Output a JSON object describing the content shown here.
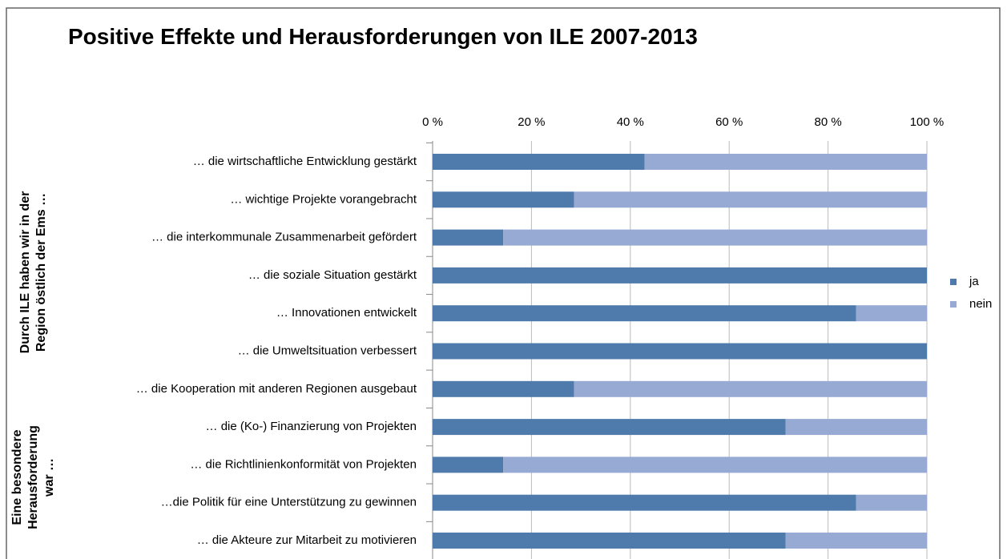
{
  "chart_data": {
    "type": "stacked-bar-horizontal",
    "title": "Positive Effekte und Herausforderungen von ILE 2007-2013",
    "categories": [
      "… die wirtschaftliche Entwicklung gestärkt",
      "… wichtige Projekte vorangebracht",
      "… die interkommunale Zusammenarbeit gefördert",
      "… die soziale Situation gestärkt",
      "… Innovationen entwickelt",
      "… die Umweltsituation verbessert",
      "… die Kooperation mit anderen Regionen ausgebaut",
      "… die (Ko-) Finanzierung von Projekten",
      "… die Richtlinienkonformität von Projekten",
      "…die Politik für eine Unterstützung zu gewinnen",
      "… die Akteure zur Mitarbeit zu motivieren"
    ],
    "groups": [
      {
        "lines": [
          "Durch ILE haben wir in der",
          "Region östlich der Ems …"
        ]
      },
      {
        "lines": [
          "Eine  besondere",
          "Herausforderung",
          "war …"
        ]
      }
    ],
    "series": [
      {
        "name": "ja",
        "color": "#4f7bac",
        "values": [
          42.9,
          28.6,
          14.3,
          100,
          85.7,
          100,
          28.6,
          71.4,
          14.3,
          85.7,
          71.4
        ]
      },
      {
        "name": "nein",
        "color": "#97aad3",
        "values": [
          57.1,
          71.4,
          85.7,
          0,
          14.3,
          0,
          71.4,
          28.6,
          85.7,
          14.3,
          28.6
        ]
      }
    ],
    "xlim": [
      0,
      100
    ],
    "xticks": [
      {
        "value": 0,
        "label": "0 %"
      },
      {
        "value": 20,
        "label": "20 %"
      },
      {
        "value": 40,
        "label": "40 %"
      },
      {
        "value": 60,
        "label": "60 %"
      },
      {
        "value": 80,
        "label": "80 %"
      },
      {
        "value": 100,
        "label": "100 %"
      }
    ],
    "grid": true,
    "legend": "right"
  }
}
